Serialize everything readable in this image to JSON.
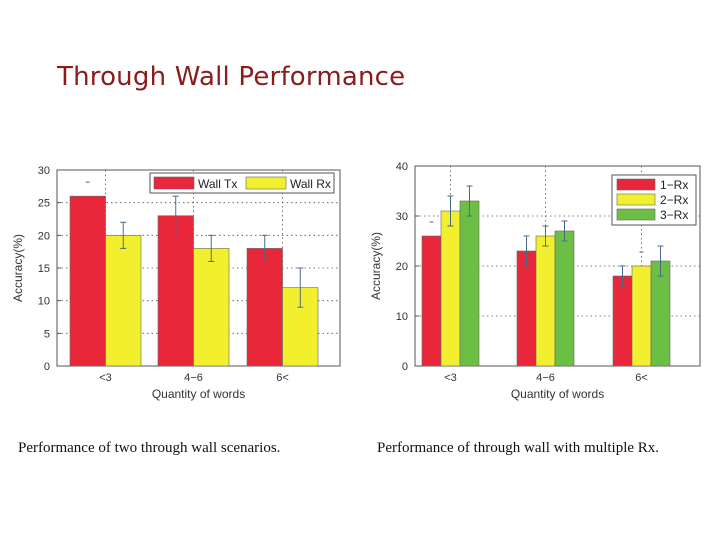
{
  "slide": {
    "title": "Through Wall Performance"
  },
  "captions": {
    "left": "Performance of two through wall scenarios.",
    "right": "Performance of through wall with multiple Rx."
  },
  "colors": {
    "red": "#e8283a",
    "yellow": "#f2ef2e",
    "green": "#6cbf44",
    "errorbar": "#4a6a8a"
  },
  "chart_data": [
    {
      "type": "bar",
      "title": "",
      "xlabel": "Quantity of words",
      "ylabel": "Accuracy(%)",
      "categories": [
        "<3",
        "4−6",
        "6<"
      ],
      "ylim": [
        0,
        30
      ],
      "yticks": [
        0,
        5,
        10,
        15,
        20,
        25,
        30
      ],
      "grid": true,
      "legend_position": "top-right",
      "series": [
        {
          "name": "Wall Tx",
          "color": "#e8283a",
          "values": [
            26,
            23,
            18
          ],
          "errors": [
            0,
            3,
            2
          ]
        },
        {
          "name": "Wall Rx",
          "color": "#f2ef2e",
          "values": [
            20,
            18,
            12
          ],
          "errors": [
            2,
            2,
            3
          ]
        }
      ]
    },
    {
      "type": "bar",
      "title": "",
      "xlabel": "Quantity of words",
      "ylabel": "Accuracy(%)",
      "categories": [
        "<3",
        "4−6",
        "6<"
      ],
      "ylim": [
        0,
        40
      ],
      "yticks": [
        0,
        10,
        20,
        30,
        40
      ],
      "grid": true,
      "legend_position": "top-right",
      "series": [
        {
          "name": "1−Rx",
          "color": "#e8283a",
          "values": [
            26,
            23,
            18
          ],
          "errors": [
            0,
            3,
            2
          ]
        },
        {
          "name": "2−Rx",
          "color": "#f2ef2e",
          "values": [
            31,
            26,
            20
          ],
          "errors": [
            3,
            2,
            0
          ]
        },
        {
          "name": "3−Rx",
          "color": "#6cbf44",
          "values": [
            33,
            27,
            21
          ],
          "errors": [
            3,
            2,
            3
          ]
        }
      ]
    }
  ]
}
